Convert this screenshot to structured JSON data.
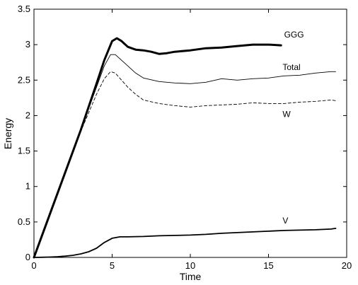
{
  "chart_data": {
    "type": "line",
    "title": "",
    "xlabel": "Time",
    "ylabel": "Energy",
    "xlim": [
      0,
      20
    ],
    "ylim": [
      0,
      3.5
    ],
    "xticks": [
      0,
      5,
      10,
      15,
      20
    ],
    "yticks": [
      0,
      0.5,
      1,
      1.5,
      2,
      2.5,
      3,
      3.5
    ],
    "xtick_labels": [
      "0",
      "5",
      "10",
      "15",
      "20"
    ],
    "ytick_labels": [
      "0",
      "0.5",
      "1",
      "1.5",
      "2",
      "2.5",
      "3",
      "3.5"
    ],
    "grid": false,
    "legend": "none",
    "series": [
      {
        "name": "GGG",
        "style": "thick-solid",
        "x": [
          0,
          1,
          2,
          3,
          4,
          4.5,
          5,
          5.3,
          5.6,
          6,
          6.5,
          7,
          7.5,
          8,
          8.5,
          9,
          10,
          11,
          12,
          13,
          14,
          15,
          15.8
        ],
        "y": [
          0,
          0.6,
          1.2,
          1.8,
          2.45,
          2.78,
          3.05,
          3.09,
          3.05,
          2.97,
          2.93,
          2.92,
          2.9,
          2.87,
          2.88,
          2.9,
          2.92,
          2.95,
          2.96,
          2.98,
          3.0,
          3.0,
          2.99
        ]
      },
      {
        "name": "Total",
        "style": "thin-solid",
        "x": [
          0,
          1,
          2,
          3,
          4,
          4.5,
          4.9,
          5.2,
          5.6,
          6,
          6.5,
          7,
          8,
          9,
          10,
          11,
          12,
          13,
          14,
          15,
          16,
          17,
          18,
          19,
          19.3
        ],
        "y": [
          0,
          0.6,
          1.2,
          1.8,
          2.4,
          2.7,
          2.86,
          2.86,
          2.78,
          2.7,
          2.6,
          2.53,
          2.48,
          2.46,
          2.45,
          2.47,
          2.52,
          2.5,
          2.52,
          2.53,
          2.56,
          2.57,
          2.6,
          2.62,
          2.62
        ]
      },
      {
        "name": "W",
        "style": "dashed",
        "x": [
          0,
          1,
          2,
          3,
          4,
          4.5,
          4.9,
          5.2,
          5.6,
          6,
          6.5,
          7,
          8,
          9,
          10,
          11,
          12,
          13,
          14,
          15,
          16,
          17,
          18,
          19,
          19.3
        ],
        "y": [
          0,
          0.6,
          1.2,
          1.78,
          2.3,
          2.52,
          2.62,
          2.6,
          2.5,
          2.4,
          2.3,
          2.22,
          2.17,
          2.14,
          2.12,
          2.14,
          2.15,
          2.16,
          2.18,
          2.17,
          2.17,
          2.19,
          2.2,
          2.22,
          2.21
        ]
      },
      {
        "name": "V",
        "style": "medium-solid",
        "x": [
          0,
          0.5,
          1,
          1.5,
          2,
          2.5,
          3,
          3.5,
          4,
          4.5,
          5,
          5.5,
          6,
          7,
          8,
          9,
          10,
          11,
          12,
          13,
          14,
          15,
          16,
          17,
          18,
          19,
          19.3
        ],
        "y": [
          0,
          0.002,
          0.005,
          0.01,
          0.018,
          0.03,
          0.05,
          0.08,
          0.13,
          0.21,
          0.27,
          0.29,
          0.29,
          0.295,
          0.305,
          0.31,
          0.315,
          0.325,
          0.34,
          0.35,
          0.36,
          0.37,
          0.38,
          0.385,
          0.39,
          0.4,
          0.41
        ]
      }
    ],
    "annotations": [
      {
        "text": "GGG",
        "x": 16.0,
        "y": 3.1
      },
      {
        "text": "Total",
        "x": 15.9,
        "y": 2.64
      },
      {
        "text": "W",
        "x": 15.9,
        "y": 1.98
      },
      {
        "text": "V",
        "x": 15.9,
        "y": 0.48
      }
    ]
  }
}
